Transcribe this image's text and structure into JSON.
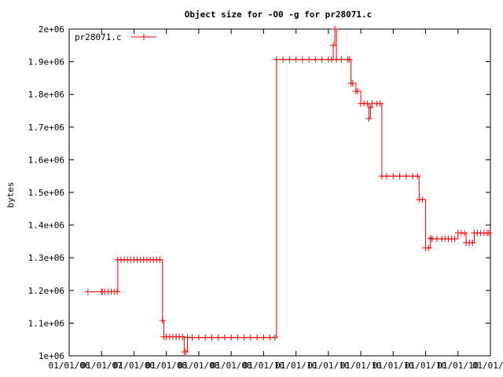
{
  "chart_data": {
    "type": "line",
    "title": "Object size for -O0 -g for pr28071.c",
    "xlabel": "",
    "ylabel": "bytes",
    "ylim": [
      1000000,
      2000000
    ],
    "yticks": [
      "1e+06",
      "1.1e+06",
      "1.2e+06",
      "1.3e+06",
      "1.4e+06",
      "1.5e+06",
      "1.6e+06",
      "1.7e+06",
      "1.8e+06",
      "1.9e+06",
      "2e+06"
    ],
    "xticks": [
      "01/01/06",
      "01/01/07",
      "01/01/00",
      "01/01/08",
      "01/01/08",
      "01/01/08",
      "01/01/10",
      "01/01/10",
      "01/01/10",
      "01/01/10",
      "01/01/10",
      "01/01/10",
      "01/01/10",
      "01/01/1"
    ],
    "xlim": [
      0,
      13
    ],
    "grid": false,
    "legend_position": "top-left",
    "series": [
      {
        "name": "pr28071.c",
        "color": "#ff0000",
        "points": [
          [
            0.58,
            1196000
          ],
          [
            1.0,
            1196000
          ],
          [
            1.02,
            1196000
          ],
          [
            1.1,
            1196000
          ],
          [
            1.2,
            1196000
          ],
          [
            1.3,
            1196000
          ],
          [
            1.4,
            1196000
          ],
          [
            1.48,
            1196000
          ],
          [
            1.5,
            1294000
          ],
          [
            1.6,
            1294000
          ],
          [
            1.7,
            1294000
          ],
          [
            1.8,
            1294000
          ],
          [
            1.9,
            1294000
          ],
          [
            2.0,
            1294000
          ],
          [
            2.1,
            1294000
          ],
          [
            2.2,
            1294000
          ],
          [
            2.3,
            1294000
          ],
          [
            2.4,
            1294000
          ],
          [
            2.5,
            1294000
          ],
          [
            2.6,
            1294000
          ],
          [
            2.7,
            1294000
          ],
          [
            2.8,
            1294000
          ],
          [
            2.88,
            1108000
          ],
          [
            2.92,
            1058000
          ],
          [
            3.0,
            1058000
          ],
          [
            3.1,
            1058000
          ],
          [
            3.2,
            1058000
          ],
          [
            3.3,
            1058000
          ],
          [
            3.4,
            1058000
          ],
          [
            3.5,
            1058000
          ],
          [
            3.55,
            1012000
          ],
          [
            3.6,
            1012000
          ],
          [
            3.65,
            1056000
          ],
          [
            3.8,
            1056000
          ],
          [
            4.0,
            1056000
          ],
          [
            4.2,
            1056000
          ],
          [
            4.4,
            1056000
          ],
          [
            4.6,
            1056000
          ],
          [
            4.8,
            1056000
          ],
          [
            5.0,
            1056000
          ],
          [
            5.2,
            1056000
          ],
          [
            5.4,
            1056000
          ],
          [
            5.6,
            1056000
          ],
          [
            5.8,
            1056000
          ],
          [
            6.0,
            1056000
          ],
          [
            6.2,
            1056000
          ],
          [
            6.35,
            1056000
          ],
          [
            6.4,
            1907000
          ],
          [
            6.6,
            1907000
          ],
          [
            6.8,
            1907000
          ],
          [
            7.0,
            1907000
          ],
          [
            7.2,
            1907000
          ],
          [
            7.4,
            1907000
          ],
          [
            7.6,
            1907000
          ],
          [
            7.8,
            1907000
          ],
          [
            8.0,
            1907000
          ],
          [
            8.1,
            1907000
          ],
          [
            8.15,
            1950000
          ],
          [
            8.2,
            2000000
          ],
          [
            8.25,
            1907000
          ],
          [
            8.4,
            1907000
          ],
          [
            8.6,
            1907000
          ],
          [
            8.65,
            1907000
          ],
          [
            8.7,
            1834000
          ],
          [
            8.75,
            1834000
          ],
          [
            8.85,
            1810000
          ],
          [
            8.9,
            1810000
          ],
          [
            9.0,
            1772000
          ],
          [
            9.1,
            1772000
          ],
          [
            9.2,
            1772000
          ],
          [
            9.25,
            1726000
          ],
          [
            9.3,
            1760000
          ],
          [
            9.35,
            1772000
          ],
          [
            9.5,
            1772000
          ],
          [
            9.6,
            1772000
          ],
          [
            9.65,
            1550000
          ],
          [
            9.8,
            1550000
          ],
          [
            10.0,
            1550000
          ],
          [
            10.2,
            1550000
          ],
          [
            10.4,
            1550000
          ],
          [
            10.6,
            1550000
          ],
          [
            10.75,
            1550000
          ],
          [
            10.8,
            1478000
          ],
          [
            10.9,
            1478000
          ],
          [
            11.0,
            1330000
          ],
          [
            11.1,
            1330000
          ],
          [
            11.15,
            1360000
          ],
          [
            11.2,
            1358000
          ],
          [
            11.35,
            1358000
          ],
          [
            11.5,
            1358000
          ],
          [
            11.6,
            1358000
          ],
          [
            11.7,
            1358000
          ],
          [
            11.8,
            1358000
          ],
          [
            11.9,
            1358000
          ],
          [
            12.0,
            1376000
          ],
          [
            12.1,
            1376000
          ],
          [
            12.2,
            1376000
          ],
          [
            12.25,
            1346000
          ],
          [
            12.35,
            1346000
          ],
          [
            12.45,
            1346000
          ],
          [
            12.5,
            1376000
          ],
          [
            12.6,
            1376000
          ],
          [
            12.7,
            1376000
          ],
          [
            12.8,
            1376000
          ],
          [
            12.9,
            1376000
          ],
          [
            12.95,
            1376000
          ]
        ]
      }
    ]
  }
}
